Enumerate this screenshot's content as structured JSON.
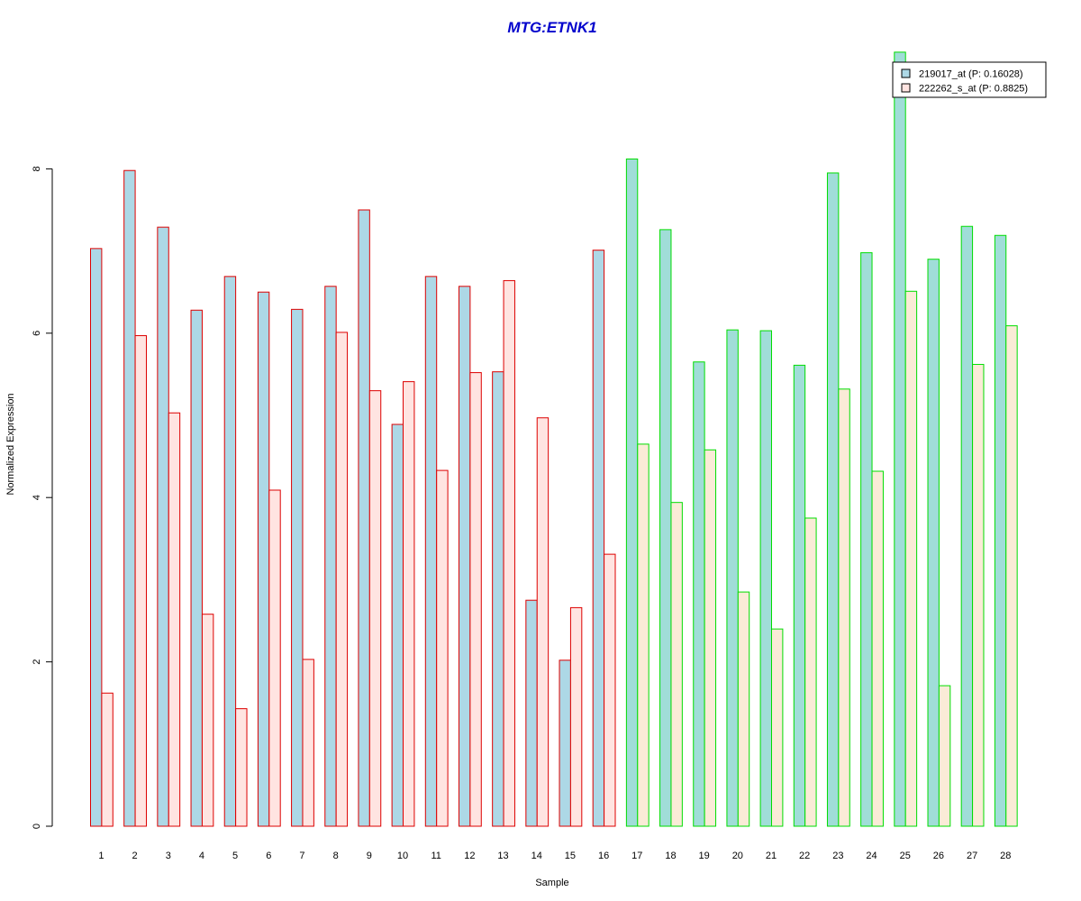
{
  "chart_data": {
    "type": "bar",
    "title": "MTG:ETNK1",
    "xlabel": "Sample",
    "ylabel": "Normalized Expression",
    "ylim": [
      0,
      9.5
    ],
    "yticks": [
      "0",
      "2",
      "4",
      "6",
      "8"
    ],
    "categories": [
      "1",
      "2",
      "3",
      "4",
      "5",
      "6",
      "7",
      "8",
      "9",
      "10",
      "11",
      "12",
      "13",
      "14",
      "15",
      "16",
      "17",
      "18",
      "19",
      "20",
      "21",
      "22",
      "23",
      "24",
      "25",
      "26",
      "27",
      "28"
    ],
    "series": [
      {
        "name": "219017_at (P: 0.16028)",
        "values": [
          7.03,
          7.98,
          7.29,
          6.28,
          6.69,
          6.5,
          6.29,
          6.57,
          7.5,
          4.89,
          6.69,
          6.57,
          5.53,
          2.75,
          2.02,
          7.01,
          8.12,
          7.26,
          5.65,
          6.04,
          6.03,
          5.61,
          7.95,
          6.98,
          9.42,
          6.9,
          7.3,
          7.19
        ]
      },
      {
        "name": "222262_s_at (P: 0.8825)",
        "values": [
          1.62,
          5.97,
          5.03,
          2.58,
          1.43,
          4.09,
          2.03,
          6.01,
          5.3,
          5.41,
          4.33,
          5.52,
          6.64,
          4.97,
          2.66,
          3.31,
          4.65,
          3.94,
          4.58,
          2.85,
          2.4,
          3.75,
          5.32,
          4.32,
          6.51,
          1.71,
          5.62,
          6.09
        ]
      }
    ],
    "colors": {
      "series1_fill": "#ADD8E6",
      "series2_fill_group1": "#FFE4E1",
      "series2_fill_group2": "#FAEBD7",
      "series1_fill_group2": "#A0DDD8",
      "group1_border": "#DD0000",
      "group2_border": "#00DD00",
      "title": "#0000CC"
    },
    "groups": [
      {
        "samples": "1-16",
        "border": "red"
      },
      {
        "samples": "17-28",
        "border": "green"
      }
    ],
    "legend_position": "top-right",
    "grid": false
  }
}
